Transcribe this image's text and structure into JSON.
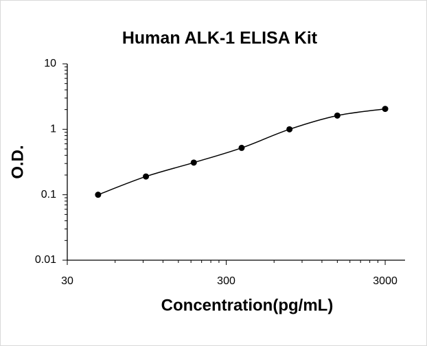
{
  "chart_data": {
    "type": "scatter",
    "title": "Human ALK-1 ELISA Kit",
    "x_label": "Concentration(pg/mL)",
    "y_label": "O.D.",
    "x": [
      46.875,
      93.75,
      187.5,
      375,
      750,
      1500,
      3000
    ],
    "series": [
      {
        "color": "#000000",
        "values": [
          0.1,
          0.19,
          0.31,
          0.52,
          1.0,
          1.62,
          2.05
        ]
      }
    ],
    "xscale": "log",
    "yscale": "log",
    "xlim": [
      30,
      4000
    ],
    "xticks": [
      30,
      300,
      3000
    ],
    "ylim": [
      0.01,
      10
    ],
    "yticks": [
      0.01,
      0.1,
      1,
      10
    ],
    "grid": false,
    "fit_line": true
  }
}
